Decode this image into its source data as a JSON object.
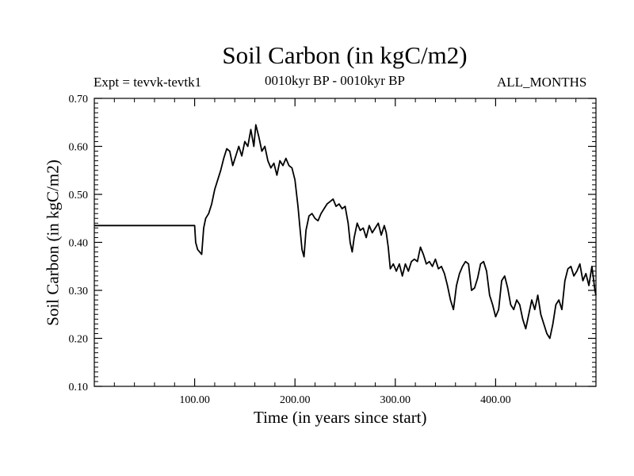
{
  "chart_data": {
    "type": "line",
    "title": "Soil Carbon (in kgC/m2)",
    "subtitle_left": "Expt = tevvk-tevtk1",
    "subtitle_center": "0010kyr BP - 0010kyr BP",
    "subtitle_right": "ALL_MONTHS",
    "xlabel": "Time (in years since start)",
    "ylabel": "Soil Carbon (in kgC/m2)",
    "xlim": [
      0,
      500
    ],
    "ylim": [
      0.1,
      0.7
    ],
    "xticks": [
      100,
      200,
      300,
      400
    ],
    "xtick_labels": [
      "100.00",
      "200.00",
      "300.00",
      "400.00"
    ],
    "yticks": [
      0.1,
      0.2,
      0.3,
      0.4,
      0.5,
      0.6,
      0.7
    ],
    "ytick_labels": [
      "0.10",
      "0.20",
      "0.30",
      "0.40",
      "0.50",
      "0.60",
      "0.70"
    ],
    "grid": false,
    "line_color": "#000000",
    "series": [
      {
        "x": [
          0,
          100,
          101,
          103,
          105,
          107,
          109,
          111,
          114,
          117,
          120,
          123,
          126,
          129,
          132,
          135,
          138,
          141,
          144,
          147,
          150,
          153,
          156,
          159,
          161,
          164,
          167,
          170,
          173,
          176,
          179,
          182,
          185,
          188,
          191,
          194,
          197,
          200,
          203,
          205,
          207,
          209,
          211,
          214,
          217,
          220,
          223,
          226,
          229,
          232,
          235,
          238,
          241,
          244,
          247,
          250,
          253,
          255,
          257,
          259,
          262,
          265,
          268,
          271,
          274,
          277,
          280,
          283,
          286,
          289,
          291,
          293,
          295,
          298,
          301,
          304,
          307,
          310,
          313,
          316,
          319,
          322,
          325,
          328,
          331,
          334,
          337,
          340,
          343,
          346,
          349,
          352,
          355,
          358,
          361,
          364,
          367,
          370,
          373,
          376,
          379,
          382,
          385,
          388,
          391,
          394,
          397,
          400,
          403,
          406,
          409,
          412,
          415,
          418,
          421,
          424,
          427,
          430,
          433,
          436,
          439,
          442,
          445,
          448,
          451,
          454,
          457,
          460,
          463,
          466,
          469,
          472,
          475,
          478,
          481,
          484,
          487,
          490,
          493,
          496,
          499,
          500
        ],
        "y": [
          0.435,
          0.435,
          0.4,
          0.385,
          0.38,
          0.375,
          0.43,
          0.45,
          0.46,
          0.48,
          0.51,
          0.53,
          0.55,
          0.575,
          0.595,
          0.59,
          0.56,
          0.58,
          0.6,
          0.58,
          0.61,
          0.6,
          0.635,
          0.6,
          0.645,
          0.62,
          0.59,
          0.6,
          0.57,
          0.555,
          0.565,
          0.54,
          0.57,
          0.56,
          0.575,
          0.56,
          0.555,
          0.53,
          0.475,
          0.43,
          0.385,
          0.37,
          0.425,
          0.455,
          0.46,
          0.45,
          0.445,
          0.46,
          0.47,
          0.48,
          0.485,
          0.49,
          0.475,
          0.48,
          0.47,
          0.475,
          0.44,
          0.4,
          0.38,
          0.41,
          0.44,
          0.425,
          0.43,
          0.41,
          0.435,
          0.42,
          0.43,
          0.44,
          0.415,
          0.435,
          0.42,
          0.39,
          0.345,
          0.355,
          0.34,
          0.355,
          0.33,
          0.355,
          0.34,
          0.36,
          0.365,
          0.36,
          0.39,
          0.375,
          0.355,
          0.36,
          0.35,
          0.365,
          0.345,
          0.35,
          0.335,
          0.31,
          0.28,
          0.26,
          0.31,
          0.335,
          0.35,
          0.36,
          0.355,
          0.3,
          0.305,
          0.325,
          0.355,
          0.36,
          0.34,
          0.29,
          0.27,
          0.245,
          0.26,
          0.32,
          0.33,
          0.305,
          0.27,
          0.26,
          0.28,
          0.27,
          0.24,
          0.22,
          0.25,
          0.28,
          0.26,
          0.29,
          0.25,
          0.23,
          0.21,
          0.2,
          0.23,
          0.27,
          0.28,
          0.26,
          0.32,
          0.345,
          0.35,
          0.33,
          0.34,
          0.355,
          0.32,
          0.335,
          0.31,
          0.35,
          0.3,
          0.29
        ]
      }
    ]
  }
}
